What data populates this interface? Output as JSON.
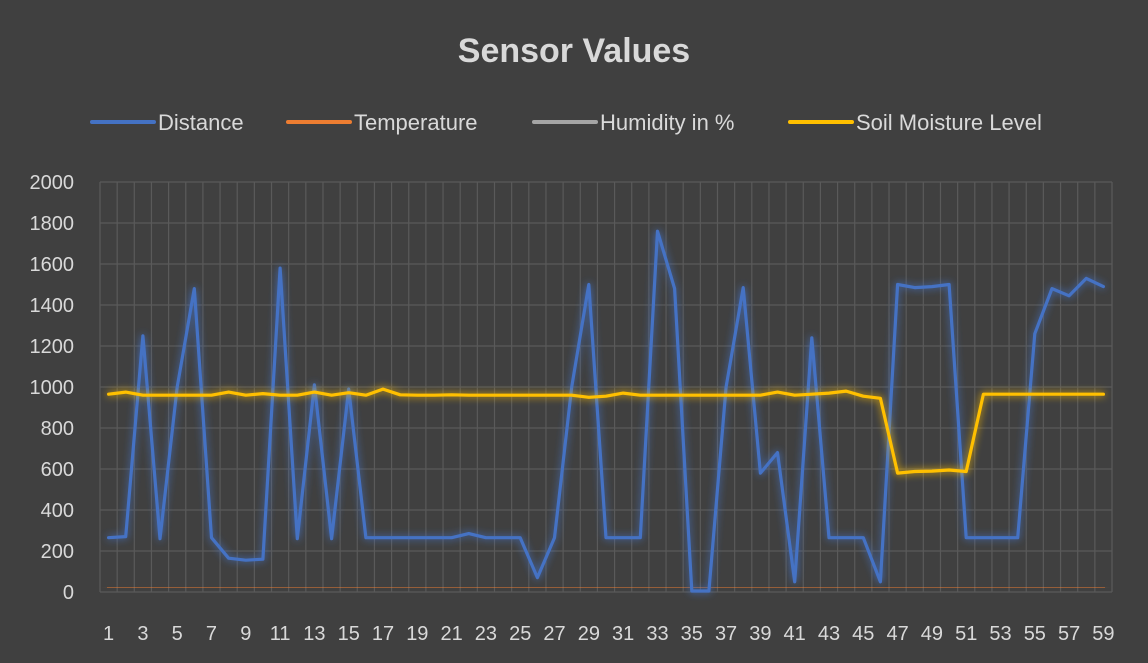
{
  "chart_data": {
    "type": "line",
    "title": "Sensor Values",
    "xlabel": "",
    "ylabel": "",
    "ylim": [
      0,
      2000
    ],
    "yticks": [
      0,
      200,
      400,
      600,
      800,
      1000,
      1200,
      1400,
      1600,
      1800,
      2000
    ],
    "x": [
      1,
      2,
      3,
      4,
      5,
      6,
      7,
      8,
      9,
      10,
      11,
      12,
      13,
      14,
      15,
      16,
      17,
      18,
      19,
      20,
      21,
      22,
      23,
      24,
      25,
      26,
      27,
      28,
      29,
      30,
      31,
      32,
      33,
      34,
      35,
      36,
      37,
      38,
      39,
      40,
      41,
      42,
      43,
      44,
      45,
      46,
      47,
      48,
      49,
      50,
      51,
      52,
      53,
      54,
      55,
      56,
      57,
      58,
      59
    ],
    "xtick_labels": [
      1,
      3,
      5,
      7,
      9,
      11,
      13,
      15,
      17,
      19,
      21,
      23,
      25,
      27,
      29,
      31,
      33,
      35,
      37,
      39,
      41,
      43,
      45,
      47,
      49,
      51,
      53,
      55,
      57,
      59
    ],
    "grid": true,
    "legend_position": "top",
    "series": [
      {
        "name": "Distance",
        "color": "#4472c4",
        "values": [
          265,
          270,
          1250,
          260,
          1000,
          1480,
          265,
          165,
          155,
          160,
          1580,
          260,
          1010,
          260,
          990,
          265,
          265,
          265,
          265,
          265,
          265,
          285,
          265,
          265,
          265,
          70,
          265,
          1000,
          1500,
          265,
          265,
          265,
          1760,
          1480,
          5,
          5,
          1000,
          1485,
          580,
          680,
          50,
          1240,
          265,
          265,
          265,
          50,
          1500,
          1485,
          1490,
          1500,
          265,
          265,
          265,
          265,
          1260,
          1480,
          1445,
          1530,
          1490
        ]
      },
      {
        "name": "Temperature",
        "color": "#ed7d31",
        "values": [
          24,
          24,
          23,
          23,
          24,
          24,
          24,
          24,
          24,
          24,
          24,
          24,
          24,
          24,
          24,
          24,
          24,
          24,
          24,
          24,
          23,
          24,
          24,
          24,
          24,
          24,
          24,
          24,
          24,
          24,
          24,
          24,
          24,
          24,
          24,
          24,
          24,
          24,
          24,
          24,
          24,
          24,
          24,
          24,
          24,
          24,
          24,
          24,
          24,
          24,
          24,
          24,
          24,
          24,
          24,
          23,
          24,
          24,
          24
        ]
      },
      {
        "name": "Humidity in %",
        "color": "#a5a5a5",
        "values": [
          54,
          54,
          54,
          54,
          54,
          54,
          54,
          54,
          54,
          54,
          54,
          54,
          54,
          54,
          54,
          54,
          54,
          54,
          54,
          54,
          54,
          54,
          54,
          54,
          54,
          54,
          54,
          54,
          54,
          54,
          54,
          54,
          54,
          54,
          54,
          54,
          54,
          54,
          54,
          54,
          54,
          54,
          54,
          54,
          54,
          54,
          54,
          54,
          54,
          54,
          54,
          54,
          54,
          54,
          54,
          54,
          54,
          54,
          54
        ]
      },
      {
        "name": "Soil Moisture Level",
        "color": "#ffc000",
        "values": [
          965,
          975,
          960,
          960,
          960,
          960,
          960,
          975,
          960,
          968,
          960,
          960,
          975,
          960,
          972,
          960,
          990,
          962,
          960,
          960,
          962,
          960,
          960,
          960,
          960,
          960,
          960,
          960,
          950,
          955,
          970,
          960,
          960,
          960,
          960,
          960,
          960,
          960,
          960,
          975,
          960,
          965,
          970,
          980,
          955,
          945,
          580,
          588,
          590,
          595,
          588,
          965,
          965,
          965,
          965,
          965,
          965,
          965,
          965
        ]
      }
    ]
  }
}
